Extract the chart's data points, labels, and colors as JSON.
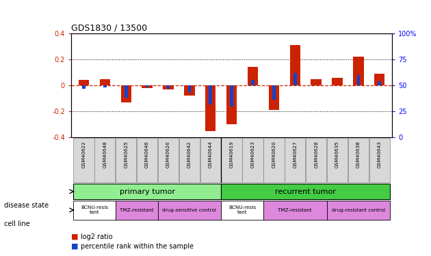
{
  "title": "GDS1830 / 13500",
  "samples": [
    "GSM40622",
    "GSM40648",
    "GSM40625",
    "GSM40646",
    "GSM40626",
    "GSM40642",
    "GSM40644",
    "GSM40619",
    "GSM40623",
    "GSM40620",
    "GSM40627",
    "GSM40628",
    "GSM40635",
    "GSM40638",
    "GSM40643"
  ],
  "log2_ratio": [
    0.04,
    0.05,
    -0.13,
    -0.02,
    -0.03,
    -0.08,
    -0.35,
    -0.3,
    0.14,
    -0.19,
    0.31,
    0.05,
    0.06,
    0.22,
    0.09
  ],
  "percentile": [
    47,
    48,
    38,
    48,
    47,
    43,
    32,
    30,
    55,
    36,
    62,
    50,
    50,
    60,
    54
  ],
  "ylim": [
    -0.4,
    0.4
  ],
  "yticks_left": [
    -0.4,
    -0.2,
    0.0,
    0.2,
    0.4
  ],
  "yticks_right": [
    0,
    25,
    50,
    75,
    100
  ],
  "yticks_right_pos": [
    -0.4,
    -0.2,
    0.0,
    0.2,
    0.4
  ],
  "bar_color_red": "#cc2200",
  "bar_color_blue": "#1144cc",
  "disease_state_label": "disease state",
  "cell_line_label": "cell line",
  "primary_tumor_color": "#90ee90",
  "recurrent_tumor_color": "#44cc44",
  "primary_tumor_label": "primary tumor",
  "recurrent_tumor_label": "recurrent tumor",
  "primary_tumor_samples": 7,
  "cell_line_groups": [
    {
      "label": "BCNU-resis\ntant",
      "color": "#ffffff",
      "start": 0,
      "end": 2
    },
    {
      "label": "TMZ-resistant",
      "color": "#dd88dd",
      "start": 2,
      "end": 4
    },
    {
      "label": "drug-sensitive control",
      "color": "#dd88dd",
      "start": 4,
      "end": 7
    },
    {
      "label": "BCNU-resis\ntant",
      "color": "#ffffff",
      "start": 7,
      "end": 9
    },
    {
      "label": "TMZ-resistant",
      "color": "#dd88dd",
      "start": 9,
      "end": 12
    },
    {
      "label": "drug-resistant control",
      "color": "#dd88dd",
      "start": 12,
      "end": 15
    }
  ],
  "legend_log2_label": "log2 ratio",
  "legend_pct_label": "percentile rank within the sample"
}
